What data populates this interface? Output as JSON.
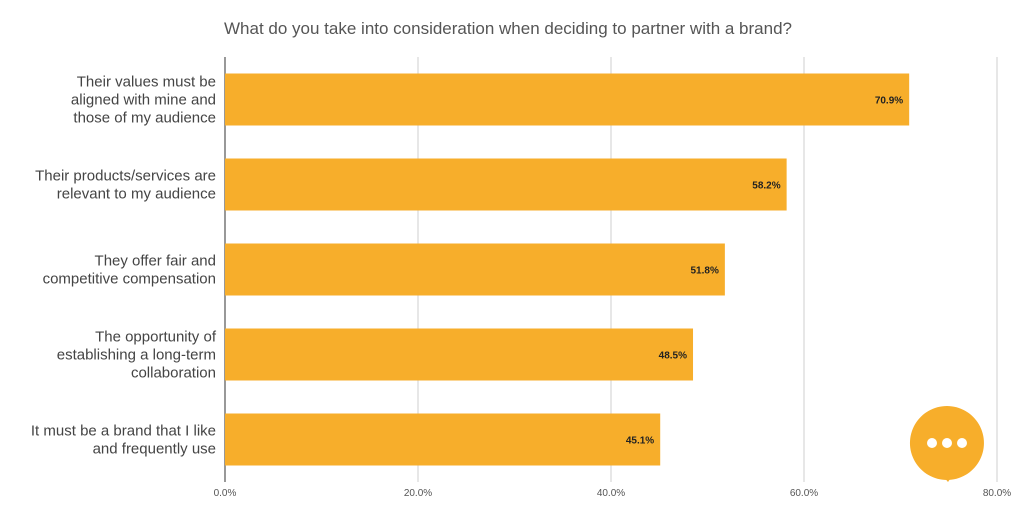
{
  "chart_data": {
    "type": "bar",
    "orientation": "horizontal",
    "title": "What do you take into consideration when deciding to partner with a brand?",
    "categories": [
      [
        "Their values must be",
        "aligned with mine and",
        "those of my audience"
      ],
      [
        "Their products/services are",
        "relevant to my audience"
      ],
      [
        "They offer fair and",
        "competitive compensation"
      ],
      [
        "The opportunity of",
        "establishing a long-term",
        "collaboration"
      ],
      [
        "It must be a brand that I like",
        "and frequently use"
      ]
    ],
    "values": [
      70.9,
      58.2,
      51.8,
      48.5,
      45.1
    ],
    "data_labels": [
      "70.9%",
      "58.2%",
      "51.8%",
      "48.5%",
      "45.1%"
    ],
    "x_ticks": [
      "0.0%",
      "20.0%",
      "40.0%",
      "60.0%",
      "80.0%"
    ],
    "xlim": [
      0,
      80
    ],
    "grid": true,
    "bar_color": "#F7AE2B"
  },
  "chat_button": {
    "icon": "ellipsis-icon",
    "color": "#F7AE2B"
  }
}
